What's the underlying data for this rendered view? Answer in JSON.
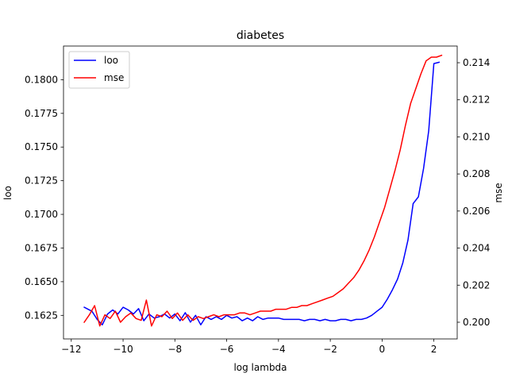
{
  "chart_data": {
    "type": "line",
    "title": "diabetes",
    "xlabel": "log lambda",
    "ylabel_left": "loo",
    "ylabel_right": "mse",
    "xlim": [
      -12.3,
      2.9
    ],
    "ylim_left": [
      0.16075,
      0.1825
    ],
    "ylim_right": [
      0.1991,
      0.2149
    ],
    "xticks": [
      -12,
      -10,
      -8,
      -6,
      -4,
      -2,
      0,
      2
    ],
    "xtick_labels": [
      "−12",
      "−10",
      "−8",
      "−6",
      "−4",
      "−2",
      "0",
      "2"
    ],
    "yticks_left": [
      0.1625,
      0.165,
      0.1675,
      0.17,
      0.1725,
      0.175,
      0.1775,
      0.18
    ],
    "ytick_labels_left": [
      "0.1625",
      "0.1650",
      "0.1675",
      "0.1700",
      "0.1725",
      "0.1750",
      "0.1775",
      "0.1800"
    ],
    "yticks_right": [
      0.2,
      0.202,
      0.204,
      0.206,
      0.208,
      0.21,
      0.212,
      0.214
    ],
    "ytick_labels_right": [
      "0.200",
      "0.202",
      "0.204",
      "0.206",
      "0.208",
      "0.210",
      "0.212",
      "0.214"
    ],
    "grid": false,
    "legend_position": "upper-left",
    "series": [
      {
        "name": "loo",
        "axis": "left",
        "color": "#0000ff",
        "x": [
          -11.5,
          -11.2,
          -11.0,
          -10.8,
          -10.6,
          -10.4,
          -10.2,
          -10.0,
          -9.8,
          -9.6,
          -9.4,
          -9.2,
          -9.0,
          -8.8,
          -8.6,
          -8.4,
          -8.2,
          -8.0,
          -7.8,
          -7.6,
          -7.4,
          -7.2,
          -7.0,
          -6.8,
          -6.6,
          -6.4,
          -6.2,
          -6.0,
          -5.8,
          -5.6,
          -5.4,
          -5.2,
          -5.0,
          -4.8,
          -4.6,
          -4.4,
          -4.2,
          -4.0,
          -3.8,
          -3.6,
          -3.4,
          -3.2,
          -3.0,
          -2.8,
          -2.6,
          -2.4,
          -2.2,
          -2.0,
          -1.8,
          -1.6,
          -1.4,
          -1.2,
          -1.0,
          -0.8,
          -0.6,
          -0.4,
          -0.2,
          0.0,
          0.2,
          0.4,
          0.6,
          0.8,
          1.0,
          1.2,
          1.4,
          1.6,
          1.8,
          2.0,
          2.2
        ],
        "y": [
          0.1631,
          0.1628,
          0.1622,
          0.1618,
          0.1626,
          0.1629,
          0.1626,
          0.1631,
          0.1629,
          0.1626,
          0.163,
          0.1621,
          0.1626,
          0.1623,
          0.1624,
          0.1626,
          0.1623,
          0.1626,
          0.1621,
          0.1627,
          0.162,
          0.1625,
          0.1618,
          0.1624,
          0.1622,
          0.1624,
          0.1622,
          0.1625,
          0.1623,
          0.1624,
          0.1621,
          0.1623,
          0.1621,
          0.1624,
          0.1622,
          0.1623,
          0.1623,
          0.1623,
          0.1622,
          0.1622,
          0.1622,
          0.1622,
          0.1621,
          0.1622,
          0.1622,
          0.1621,
          0.1622,
          0.1621,
          0.1621,
          0.1622,
          0.1622,
          0.1621,
          0.1622,
          0.1622,
          0.1623,
          0.1625,
          0.1628,
          0.1631,
          0.1637,
          0.1644,
          0.1652,
          0.1664,
          0.1681,
          0.1708,
          0.1713,
          0.1734,
          0.1762,
          0.1812,
          0.1813
        ]
      },
      {
        "name": "mse",
        "axis": "right",
        "color": "#ff0000",
        "x": [
          -11.5,
          -11.3,
          -11.1,
          -10.9,
          -10.7,
          -10.5,
          -10.3,
          -10.1,
          -9.9,
          -9.7,
          -9.5,
          -9.3,
          -9.1,
          -8.9,
          -8.7,
          -8.5,
          -8.3,
          -8.1,
          -7.9,
          -7.7,
          -7.5,
          -7.3,
          -7.1,
          -6.9,
          -6.7,
          -6.5,
          -6.3,
          -6.1,
          -5.9,
          -5.7,
          -5.5,
          -5.3,
          -5.1,
          -4.9,
          -4.7,
          -4.5,
          -4.3,
          -4.1,
          -3.9,
          -3.7,
          -3.5,
          -3.3,
          -3.1,
          -2.9,
          -2.7,
          -2.5,
          -2.3,
          -2.1,
          -1.9,
          -1.7,
          -1.5,
          -1.3,
          -1.1,
          -0.9,
          -0.7,
          -0.5,
          -0.3,
          -0.1,
          0.1,
          0.3,
          0.5,
          0.7,
          0.9,
          1.1,
          1.3,
          1.5,
          1.7,
          1.9,
          2.1,
          2.3
        ],
        "y": [
          0.2,
          0.2004,
          0.2009,
          0.1998,
          0.2004,
          0.2002,
          0.2006,
          0.2,
          0.2003,
          0.2005,
          0.2002,
          0.2001,
          0.2012,
          0.1998,
          0.2004,
          0.2003,
          0.2006,
          0.2002,
          0.2005,
          0.2001,
          0.2004,
          0.2001,
          0.2003,
          0.2002,
          0.2003,
          0.2004,
          0.2003,
          0.2004,
          0.2004,
          0.2004,
          0.2005,
          0.2005,
          0.2004,
          0.2005,
          0.2006,
          0.2006,
          0.2006,
          0.2007,
          0.2007,
          0.2007,
          0.2008,
          0.2008,
          0.2009,
          0.2009,
          0.201,
          0.2011,
          0.2012,
          0.2013,
          0.2014,
          0.2016,
          0.2018,
          0.2021,
          0.2024,
          0.2028,
          0.2033,
          0.2039,
          0.2046,
          0.2054,
          0.2062,
          0.2072,
          0.2082,
          0.2093,
          0.2106,
          0.2118,
          0.2126,
          0.2134,
          0.2141,
          0.2143,
          0.2143,
          0.2144
        ]
      }
    ]
  }
}
